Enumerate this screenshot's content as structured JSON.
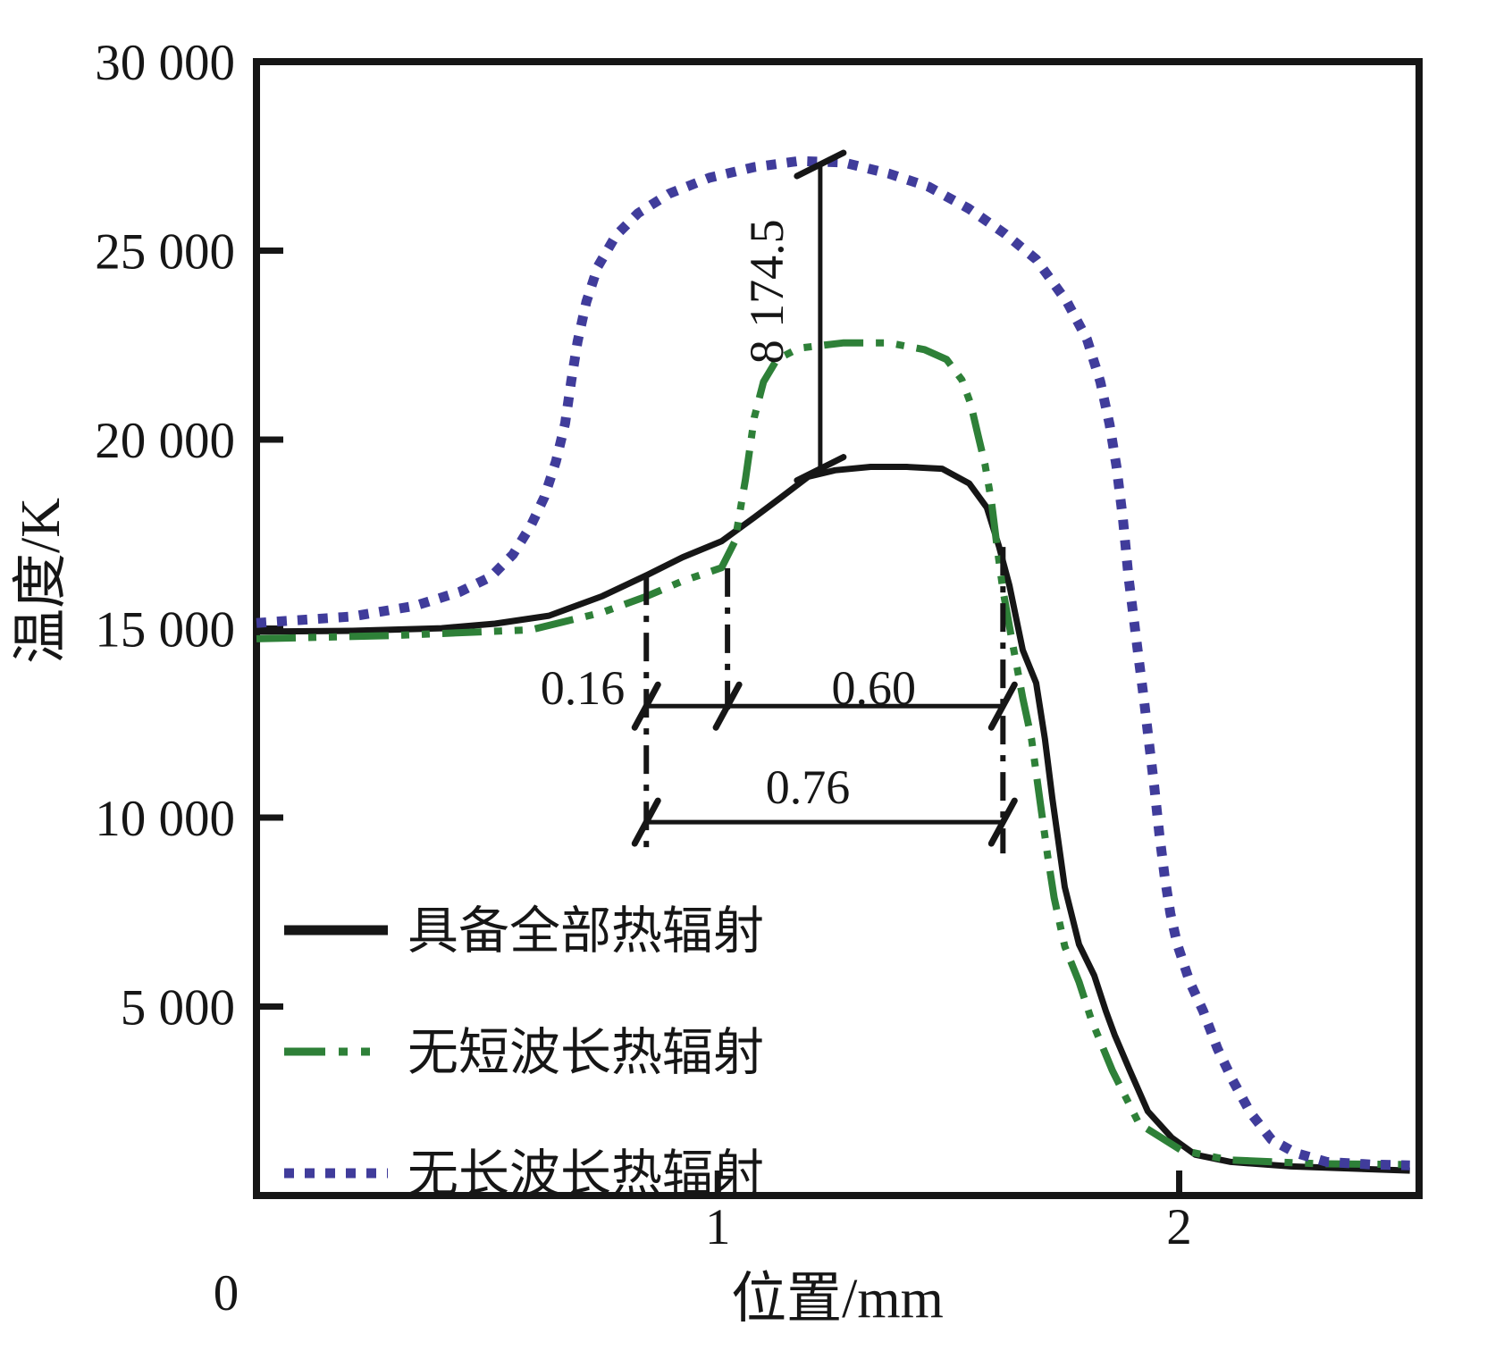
{
  "chart_data": {
    "type": "line",
    "title": "",
    "xlabel": "位置/mm",
    "ylabel": "温度/K",
    "xlim": [
      0,
      2.52
    ],
    "ylim": [
      0,
      30000
    ],
    "grid": false,
    "legend_position": "inside-lower-left",
    "x_ticks": [
      {
        "v": 0,
        "label": "0"
      },
      {
        "v": 1,
        "label": "1"
      },
      {
        "v": 2,
        "label": "2"
      }
    ],
    "y_ticks": [
      {
        "v": 30000,
        "label": "30 000"
      },
      {
        "v": 25000,
        "label": "25 000"
      },
      {
        "v": 20000,
        "label": "20 000"
      },
      {
        "v": 15000,
        "label": "15 000"
      },
      {
        "v": 10000,
        "label": "10 000"
      },
      {
        "v": 5000,
        "label": "5 000"
      }
    ],
    "series": [
      {
        "name": "具备全部热辐射",
        "color": "#161616",
        "line_style": "solid",
        "width": 7,
        "points": [
          [
            0,
            14920
          ],
          [
            0.207,
            14940
          ],
          [
            0.401,
            15010
          ],
          [
            0.517,
            15130
          ],
          [
            0.634,
            15340
          ],
          [
            0.75,
            15860
          ],
          [
            0.847,
            16420
          ],
          [
            0.924,
            16890
          ],
          [
            1.008,
            17310
          ],
          [
            1.079,
            17940
          ],
          [
            1.138,
            18480
          ],
          [
            1.196,
            19020
          ],
          [
            1.254,
            19190
          ],
          [
            1.331,
            19280
          ],
          [
            1.409,
            19280
          ],
          [
            1.486,
            19230
          ],
          [
            1.545,
            18840
          ],
          [
            1.583,
            18200
          ],
          [
            1.609,
            17190
          ],
          [
            1.632,
            16140
          ],
          [
            1.661,
            14430
          ],
          [
            1.69,
            13560
          ],
          [
            1.709,
            12080
          ],
          [
            1.725,
            10510
          ],
          [
            1.752,
            8160
          ],
          [
            1.783,
            6640
          ],
          [
            1.816,
            5820
          ],
          [
            1.841,
            4880
          ],
          [
            1.86,
            4250
          ],
          [
            1.893,
            3310
          ],
          [
            1.932,
            2230
          ],
          [
            1.984,
            1530
          ],
          [
            2.035,
            1080
          ],
          [
            2.112,
            890
          ],
          [
            2.242,
            770
          ],
          [
            2.5,
            660
          ]
        ]
      },
      {
        "name": "无短波长热辐射",
        "color": "#2e8038",
        "line_style": "dash-dot-dot",
        "width": 8,
        "points": [
          [
            0,
            14730
          ],
          [
            0.304,
            14820
          ],
          [
            0.595,
            14970
          ],
          [
            0.75,
            15430
          ],
          [
            0.847,
            15860
          ],
          [
            0.924,
            16260
          ],
          [
            1.008,
            16610
          ],
          [
            1.037,
            17310
          ],
          [
            1.06,
            18950
          ],
          [
            1.079,
            20590
          ],
          [
            1.099,
            21530
          ],
          [
            1.128,
            22120
          ],
          [
            1.176,
            22420
          ],
          [
            1.273,
            22560
          ],
          [
            1.37,
            22560
          ],
          [
            1.448,
            22380
          ],
          [
            1.496,
            22120
          ],
          [
            1.529,
            21580
          ],
          [
            1.548,
            20950
          ],
          [
            1.564,
            20120
          ],
          [
            1.579,
            19350
          ],
          [
            1.593,
            18370
          ],
          [
            1.605,
            17190
          ],
          [
            1.618,
            16020
          ],
          [
            1.637,
            14730
          ],
          [
            1.661,
            13160
          ],
          [
            1.68,
            12080
          ],
          [
            1.699,
            10390
          ],
          [
            1.715,
            8980
          ],
          [
            1.729,
            7880
          ],
          [
            1.752,
            6590
          ],
          [
            1.783,
            5650
          ],
          [
            1.81,
            4640
          ],
          [
            1.855,
            3310
          ],
          [
            1.913,
            1900
          ],
          [
            2.004,
            1200
          ],
          [
            2.107,
            940
          ],
          [
            2.306,
            840
          ],
          [
            2.5,
            820
          ]
        ]
      },
      {
        "name": "无长波长热辐射",
        "color": "#403c9b",
        "line_style": "dotted",
        "width": 11,
        "points": [
          [
            0,
            15150
          ],
          [
            0.207,
            15320
          ],
          [
            0.343,
            15600
          ],
          [
            0.44,
            15970
          ],
          [
            0.508,
            16370
          ],
          [
            0.556,
            16960
          ],
          [
            0.595,
            17730
          ],
          [
            0.624,
            18480
          ],
          [
            0.649,
            19420
          ],
          [
            0.669,
            20430
          ],
          [
            0.682,
            21530
          ],
          [
            0.696,
            22590
          ],
          [
            0.715,
            23640
          ],
          [
            0.74,
            24580
          ],
          [
            0.779,
            25400
          ],
          [
            0.827,
            25990
          ],
          [
            0.895,
            26510
          ],
          [
            0.982,
            26930
          ],
          [
            1.079,
            27210
          ],
          [
            1.176,
            27370
          ],
          [
            1.273,
            27330
          ],
          [
            1.37,
            27040
          ],
          [
            1.457,
            26690
          ],
          [
            1.544,
            26110
          ],
          [
            1.622,
            25450
          ],
          [
            1.69,
            24770
          ],
          [
            1.757,
            23640
          ],
          [
            1.8,
            22660
          ],
          [
            1.829,
            21530
          ],
          [
            1.849,
            20410
          ],
          [
            1.864,
            19300
          ],
          [
            1.878,
            17900
          ],
          [
            1.89,
            16370
          ],
          [
            1.901,
            15320
          ],
          [
            1.913,
            14140
          ],
          [
            1.924,
            13090
          ],
          [
            1.934,
            12030
          ],
          [
            1.946,
            10810
          ],
          [
            1.957,
            9570
          ],
          [
            1.969,
            8400
          ],
          [
            1.981,
            7460
          ],
          [
            1.996,
            6640
          ],
          [
            2.023,
            5650
          ],
          [
            2.052,
            4880
          ],
          [
            2.083,
            3890
          ],
          [
            2.116,
            3050
          ],
          [
            2.155,
            2180
          ],
          [
            2.2,
            1480
          ],
          [
            2.252,
            1130
          ],
          [
            2.32,
            890
          ],
          [
            2.417,
            820
          ],
          [
            2.5,
            800
          ]
        ]
      }
    ],
    "annotations": {
      "peak_difference": {
        "label": "8 174.5",
        "x_mm": 1.222,
        "from_K": 19230,
        "to_K": 27280
      },
      "guide_lines": [
        {
          "x_mm": 0.845,
          "from_K": 16380,
          "to_K": 9050
        },
        {
          "x_mm": 1.021,
          "from_K": 16600,
          "to_K": 12720
        },
        {
          "x_mm": 1.618,
          "from_K": 17160,
          "to_K": 9050
        }
      ],
      "width_dims": [
        {
          "K": 12950,
          "from_mm": 0.845,
          "to_mm": 1.618,
          "slash_mm": [
            0.845,
            1.021,
            1.618
          ]
        },
        {
          "K": 9880,
          "from_mm": 0.845,
          "to_mm": 1.618,
          "slash_mm": [
            0.845,
            1.618
          ]
        }
      ],
      "width_labels": [
        {
          "text": "0.16",
          "mm": 0.707,
          "K": 13550
        },
        {
          "text": "0.60",
          "mm": 1.338,
          "K": 13550
        },
        {
          "text": "0.76",
          "mm": 1.195,
          "K": 10920
        }
      ]
    }
  }
}
